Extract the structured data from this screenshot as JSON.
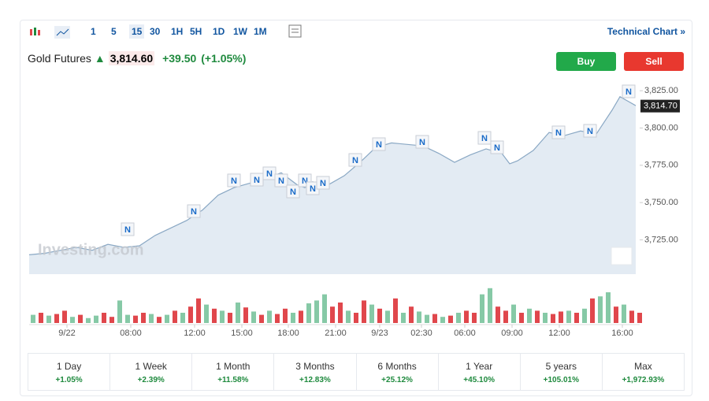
{
  "toolbar": {
    "intervals": [
      "1",
      "5",
      "15",
      "30",
      "1H",
      "5H",
      "1D",
      "1W",
      "1M"
    ],
    "active_interval": "15",
    "technical_chart": "Technical Chart »"
  },
  "header": {
    "instrument": "Gold Futures",
    "price": "3,814.60",
    "change": "+39.50",
    "change_pct": "(+1.05%)",
    "buy": "Buy",
    "sell": "Sell"
  },
  "chart": {
    "type": "area",
    "watermark": "Investing.com",
    "news_marker_label": "N",
    "color": "#8aa8c4",
    "fill": "#e3ebf3",
    "x": [
      0,
      2,
      4,
      6,
      8,
      10,
      12,
      14,
      16,
      18,
      20,
      22,
      24,
      26,
      28,
      30,
      32,
      33,
      34,
      35,
      36,
      37,
      38,
      40,
      42,
      44,
      46,
      48,
      50,
      52,
      54,
      56,
      58,
      60,
      61,
      62,
      64,
      66,
      68,
      70,
      72,
      74,
      75,
      76,
      77
    ],
    "values": [
      3715,
      3716,
      3718,
      3720,
      3718,
      3722,
      3720,
      3721,
      3728,
      3733,
      3738,
      3745,
      3755,
      3760,
      3763,
      3766,
      3770,
      3766,
      3762,
      3760,
      3764,
      3760,
      3762,
      3768,
      3777,
      3787,
      3790,
      3789,
      3788,
      3783,
      3777,
      3782,
      3786,
      3783,
      3776,
      3778,
      3785,
      3797,
      3795,
      3798,
      3796,
      3812,
      3821,
      3818,
      3815
    ],
    "xlim": [
      0,
      77.5
    ],
    "ylim": [
      3702,
      3833
    ],
    "yticks": [
      {
        "value": 3725,
        "label": "3,725.00"
      },
      {
        "value": 3750,
        "label": "3,750.00"
      },
      {
        "value": 3775,
        "label": "3,775.00"
      },
      {
        "value": 3800,
        "label": "3,800.00"
      },
      {
        "value": 3825,
        "label": "3,825.00"
      }
    ],
    "last_price": {
      "value": 3814.7,
      "label": "3,814.70"
    },
    "xticks": [
      {
        "value": 4.8,
        "label": "9/22"
      },
      {
        "value": 12.9,
        "label": "08:00"
      },
      {
        "value": 21,
        "label": "12:00"
      },
      {
        "value": 27,
        "label": "15:00"
      },
      {
        "value": 32.9,
        "label": "18:00"
      },
      {
        "value": 38.9,
        "label": "21:00"
      },
      {
        "value": 44.5,
        "label": "9/23"
      },
      {
        "value": 49.8,
        "label": "02:30"
      },
      {
        "value": 55.3,
        "label": "06:00"
      },
      {
        "value": 61.3,
        "label": "09:00"
      },
      {
        "value": 67.3,
        "label": "12:00"
      },
      {
        "value": 75.3,
        "label": "16:00"
      }
    ],
    "volume": {
      "ylim": [
        0,
        100
      ],
      "values": [
        20,
        25,
        18,
        22,
        30,
        15,
        20,
        12,
        18,
        25,
        15,
        55,
        20,
        18,
        25,
        22,
        15,
        20,
        30,
        25,
        40,
        60,
        45,
        35,
        30,
        25,
        50,
        38,
        28,
        20,
        30,
        22,
        35,
        25,
        30,
        48,
        55,
        70,
        40,
        50,
        30,
        25,
        55,
        45,
        35,
        30,
        60,
        25,
        40,
        28,
        20,
        22,
        15,
        18,
        25,
        30,
        25,
        70,
        85,
        40,
        30,
        45,
        25,
        35,
        30,
        25,
        22,
        28,
        30,
        25,
        35,
        60,
        65,
        75,
        40,
        45,
        30,
        25
      ],
      "colors": [
        "#86c9a6",
        "#e0474c",
        "#86c9a6",
        "#e0474c",
        "#e0474c",
        "#86c9a6",
        "#e0474c",
        "#86c9a6",
        "#86c9a6",
        "#e0474c",
        "#e0474c",
        "#86c9a6",
        "#86c9a6",
        "#e0474c",
        "#e0474c",
        "#86c9a6",
        "#e0474c",
        "#86c9a6",
        "#e0474c",
        "#86c9a6",
        "#e0474c",
        "#e0474c",
        "#86c9a6",
        "#e0474c",
        "#86c9a6",
        "#e0474c",
        "#86c9a6",
        "#e0474c",
        "#86c9a6",
        "#e0474c",
        "#86c9a6",
        "#e0474c",
        "#e0474c",
        "#86c9a6",
        "#e0474c",
        "#86c9a6",
        "#86c9a6",
        "#86c9a6",
        "#e0474c",
        "#e0474c",
        "#86c9a6",
        "#e0474c",
        "#e0474c",
        "#86c9a6",
        "#e0474c",
        "#86c9a6",
        "#e0474c",
        "#86c9a6",
        "#e0474c",
        "#86c9a6",
        "#86c9a6",
        "#e0474c",
        "#86c9a6",
        "#e0474c",
        "#86c9a6",
        "#e0474c",
        "#e0474c",
        "#86c9a6",
        "#86c9a6",
        "#e0474c",
        "#e0474c",
        "#86c9a6",
        "#e0474c",
        "#86c9a6",
        "#e0474c",
        "#86c9a6",
        "#e0474c",
        "#e0474c",
        "#86c9a6",
        "#e0474c",
        "#86c9a6",
        "#e0474c",
        "#86c9a6",
        "#86c9a6",
        "#e0474c",
        "#86c9a6",
        "#e0474c",
        "#e0474c"
      ]
    }
  },
  "periods": [
    {
      "label": "1 Day",
      "change": "+1.05%"
    },
    {
      "label": "1 Week",
      "change": "+2.39%"
    },
    {
      "label": "1 Month",
      "change": "+11.58%"
    },
    {
      "label": "3 Months",
      "change": "+12.83%"
    },
    {
      "label": "6 Months",
      "change": "+25.12%"
    },
    {
      "label": "1 Year",
      "change": "+45.10%"
    },
    {
      "label": "5 years",
      "change": "+105.01%"
    },
    {
      "label": "Max",
      "change": "+1,972.93%"
    }
  ]
}
